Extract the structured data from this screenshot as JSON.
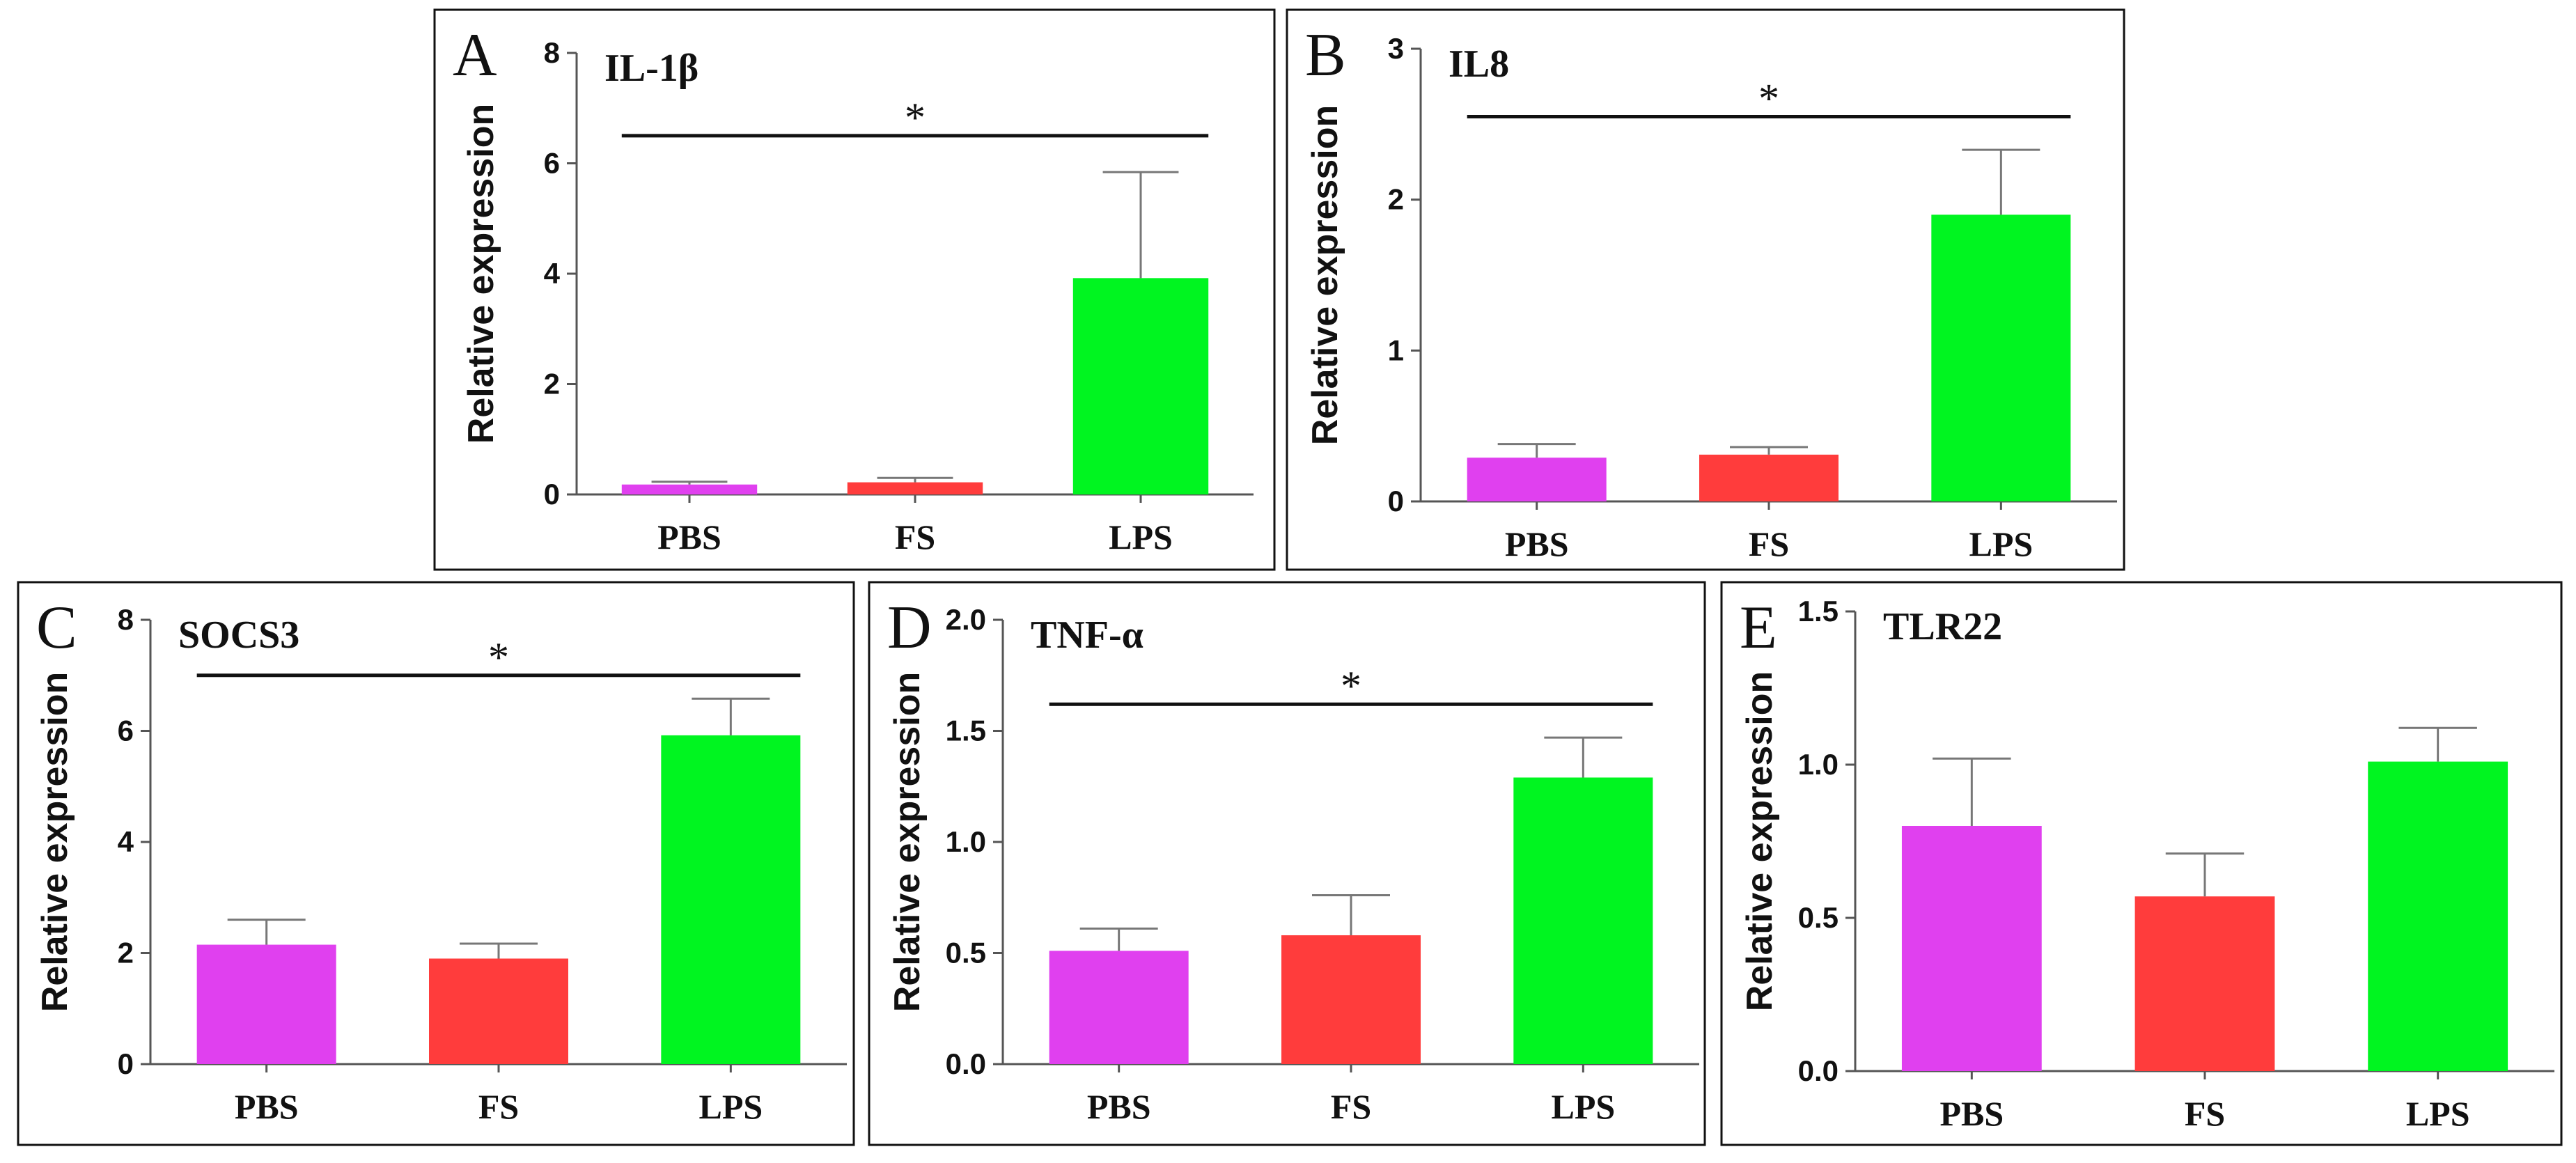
{
  "colors": {
    "PBS": "#e040ef",
    "FS": "#ff3c3c",
    "LPS": "#00f520",
    "frame": "#111111",
    "axis": "#555555"
  },
  "chart_data": [
    {
      "type": "bar",
      "panel": "A",
      "title": "IL-1β",
      "xlabel": "",
      "ylabel": "Relative expression",
      "categories": [
        "PBS",
        "FS",
        "LPS"
      ],
      "values": [
        0.18,
        0.22,
        3.92
      ],
      "errors": [
        0.05,
        0.08,
        1.92
      ],
      "ylim": [
        0,
        8
      ],
      "yticks": [
        0,
        2,
        4,
        6,
        8
      ],
      "ytick_labels": [
        "0",
        "2",
        "4",
        "6",
        "8"
      ],
      "significance": {
        "from": "PBS",
        "to": "LPS",
        "y": 6.5,
        "label": "*"
      }
    },
    {
      "type": "bar",
      "panel": "B",
      "title": "IL8",
      "xlabel": "",
      "ylabel": "Relative expression",
      "categories": [
        "PBS",
        "FS",
        "LPS"
      ],
      "values": [
        0.29,
        0.31,
        1.9
      ],
      "errors": [
        0.09,
        0.05,
        0.43
      ],
      "ylim": [
        0,
        3
      ],
      "yticks": [
        0,
        1,
        2,
        3
      ],
      "ytick_labels": [
        "0",
        "1",
        "2",
        "3"
      ],
      "significance": {
        "from": "PBS",
        "to": "LPS",
        "y": 2.55,
        "label": "*"
      }
    },
    {
      "type": "bar",
      "panel": "C",
      "title": "SOCS3",
      "xlabel": "",
      "ylabel": "Relative expression",
      "categories": [
        "PBS",
        "FS",
        "LPS"
      ],
      "values": [
        2.15,
        1.9,
        5.92
      ],
      "errors": [
        0.45,
        0.27,
        0.66
      ],
      "ylim": [
        0,
        8
      ],
      "yticks": [
        0,
        2,
        4,
        6,
        8
      ],
      "ytick_labels": [
        "0",
        "2",
        "4",
        "6",
        "8"
      ],
      "significance": {
        "from": "PBS",
        "to": "LPS",
        "y": 7.0,
        "label": "*"
      }
    },
    {
      "type": "bar",
      "panel": "D",
      "title": "TNF-α",
      "xlabel": "",
      "ylabel": "Relative expression",
      "categories": [
        "PBS",
        "FS",
        "LPS"
      ],
      "values": [
        0.51,
        0.58,
        1.29
      ],
      "errors": [
        0.1,
        0.18,
        0.18
      ],
      "ylim": [
        0,
        2.0
      ],
      "yticks": [
        0,
        0.5,
        1.0,
        1.5,
        2.0
      ],
      "ytick_labels": [
        "0.0",
        "0.5",
        "1.0",
        "1.5",
        "2.0"
      ],
      "significance": {
        "from": "PBS",
        "to": "LPS",
        "y": 1.62,
        "label": "*"
      }
    },
    {
      "type": "bar",
      "panel": "E",
      "title": "TLR22",
      "xlabel": "",
      "ylabel": "Relative expression",
      "categories": [
        "PBS",
        "FS",
        "LPS"
      ],
      "values": [
        0.8,
        0.57,
        1.01
      ],
      "errors": [
        0.22,
        0.14,
        0.11
      ],
      "ylim": [
        0,
        1.5
      ],
      "yticks": [
        0,
        0.5,
        1.0,
        1.5
      ],
      "ytick_labels": [
        "0.0",
        "0.5",
        "1.0",
        "1.5"
      ],
      "significance": null
    }
  ]
}
